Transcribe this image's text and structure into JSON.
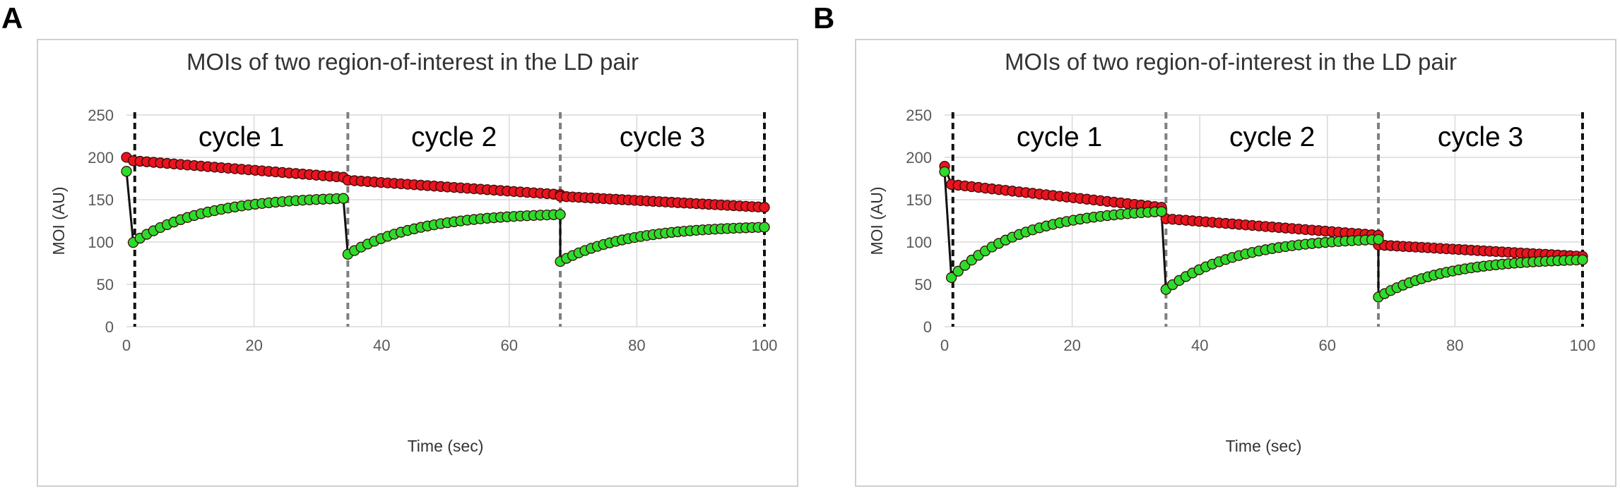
{
  "panels": [
    {
      "label": "A"
    },
    {
      "label": "B"
    }
  ],
  "colors": {
    "red_series": "#e8141e",
    "green_series": "#2cdc2c",
    "connector": "#111111"
  },
  "chart_data": [
    {
      "type": "scatter",
      "title": "MOIs of two region-of-interest  in the LD pair",
      "xlabel": "Time (sec)",
      "ylabel": "MOI (AU)",
      "xlim": [
        0,
        100
      ],
      "ylim": [
        0,
        250
      ],
      "xticks": [
        0,
        20,
        40,
        60,
        80,
        100
      ],
      "yticks": [
        0,
        50,
        100,
        150,
        200,
        250
      ],
      "grid": "both",
      "cycle_labels": [
        "cycle 1",
        "cycle 2",
        "cycle 3"
      ],
      "cycle_boundaries": [
        1.3,
        34.7,
        68.0,
        100
      ],
      "connector_line": true,
      "series": [
        {
          "color": "red",
          "cycles": [
            {
              "t0": 0,
              "t1": 34,
              "y0": 200,
              "y_first": 196,
              "y_end": 176.5,
              "n": 32
            },
            {
              "t0": 34.7,
              "t1": 68,
              "y_first": 173,
              "y_end": 156,
              "n": 33
            },
            {
              "t0": 68,
              "t1": 100,
              "y_first": 154,
              "y_end": 141,
              "n": 34
            }
          ]
        },
        {
          "color": "green",
          "cycles": [
            {
              "t0": 0,
              "t1": 34,
              "y0": 183.5,
              "y_first": 99.5,
              "y_end": 151.5,
              "n": 32
            },
            {
              "t0": 34.7,
              "t1": 68,
              "y_first": 85.5,
              "y_end": 132.5,
              "n": 33
            },
            {
              "t0": 68,
              "t1": 100,
              "y_first": 77,
              "y_end": 117.5,
              "n": 34
            }
          ]
        }
      ]
    },
    {
      "type": "scatter",
      "title": "MOIs of two region-of-interest  in the LD pair",
      "xlabel": "Time (sec)",
      "ylabel": "MOI (AU)",
      "xlim": [
        0,
        100
      ],
      "ylim": [
        0,
        250
      ],
      "xticks": [
        0,
        20,
        40,
        60,
        80,
        100
      ],
      "yticks": [
        0,
        50,
        100,
        150,
        200,
        250
      ],
      "grid": "both",
      "cycle_labels": [
        "cycle 1",
        "cycle 2",
        "cycle 3"
      ],
      "cycle_boundaries": [
        1.3,
        34.7,
        68.0,
        100
      ],
      "connector_line": true,
      "series": [
        {
          "color": "red",
          "cycles": [
            {
              "t0": 0,
              "t1": 34,
              "y0": 189.5,
              "y_first": 168,
              "y_end": 141,
              "n": 32
            },
            {
              "t0": 34.7,
              "t1": 68,
              "y_first": 127.5,
              "y_end": 108,
              "n": 33
            },
            {
              "t0": 68,
              "t1": 100,
              "y_first": 96.5,
              "y_end": 83,
              "n": 34
            }
          ]
        },
        {
          "color": "green",
          "cycles": [
            {
              "t0": 0,
              "t1": 34,
              "y0": 183,
              "y_first": 58,
              "y_end": 136,
              "n": 32
            },
            {
              "t0": 34.7,
              "t1": 68,
              "y_first": 44,
              "y_end": 103,
              "n": 33
            },
            {
              "t0": 68,
              "t1": 100,
              "y_first": 35,
              "y_end": 79,
              "n": 34
            }
          ]
        }
      ]
    }
  ]
}
